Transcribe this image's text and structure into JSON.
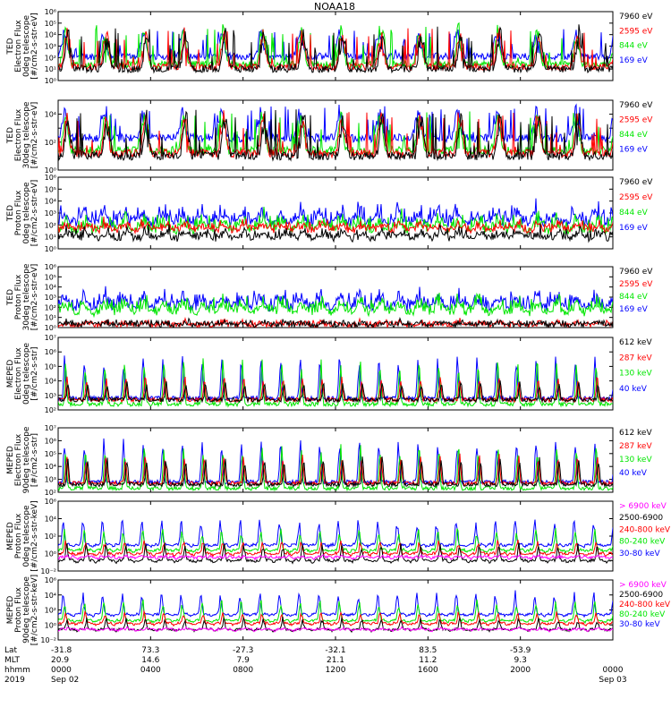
{
  "title": "NOAA18",
  "x_axis": {
    "row_labels": [
      "Lat",
      "MLT",
      "hhmm",
      "2019"
    ],
    "ticks": [
      {
        "t": 0,
        "lat": "-31.8",
        "mlt": "20.9",
        "hhmm": "0000",
        "date": "Sep 02"
      },
      {
        "t": 240,
        "lat": "73.3",
        "mlt": "14.6",
        "hhmm": "0400",
        "date": ""
      },
      {
        "t": 480,
        "lat": "-27.3",
        "mlt": "7.9",
        "hhmm": "0800",
        "date": ""
      },
      {
        "t": 720,
        "lat": "-32.1",
        "mlt": "21.1",
        "hhmm": "1200",
        "date": ""
      },
      {
        "t": 960,
        "lat": "83.5",
        "mlt": "11.2",
        "hhmm": "1600",
        "date": ""
      },
      {
        "t": 1200,
        "lat": "-53.9",
        "mlt": "9.3",
        "hhmm": "2000",
        "date": ""
      },
      {
        "t": 1440,
        "lat": "",
        "mlt": "",
        "hhmm": "0000",
        "date": "Sep 03"
      }
    ],
    "range_minutes": [
      0,
      1440
    ]
  },
  "colors": {
    "black": "#000000",
    "red": "#ff0000",
    "green": "#00e600",
    "blue": "#0000ff",
    "magenta": "#ff00ff"
  },
  "chart_data": [
    {
      "type": "line",
      "ylabel_lines": [
        "TED",
        "Electron Flux",
        "0deg telescope",
        "[#/cm2-s-str-eV]"
      ],
      "yscale": "log",
      "ylim_exp": [
        0,
        6
      ],
      "ytick_labels": [
        "10⁰",
        "10¹",
        "10²",
        "10³",
        "10⁴",
        "10⁵",
        "10⁶"
      ],
      "series": [
        {
          "name": "7960 eV",
          "color": "#000000",
          "base": 1.0,
          "peak": 4.8
        },
        {
          "name": "2595 eV",
          "color": "#ff0000",
          "base": 1.2,
          "peak": 4.6
        },
        {
          "name": "844 eV",
          "color": "#00e600",
          "base": 1.4,
          "peak": 4.9
        },
        {
          "name": "169 eV",
          "color": "#0000ff",
          "base": 2.1,
          "peak": 4.5
        }
      ],
      "pattern": "burst"
    },
    {
      "type": "line",
      "ylabel_lines": [
        "TED",
        "Electron Flux",
        "30deg telescope",
        "[#/cm2-s-str-eV]"
      ],
      "yscale": "log",
      "ylim_exp": [
        0,
        5
      ],
      "ytick_labels": [
        "10⁰",
        "",
        "10²",
        "",
        "10⁴",
        ""
      ],
      "series": [
        {
          "name": "7960 eV",
          "color": "#000000",
          "base": 1.0,
          "peak": 4.4
        },
        {
          "name": "2595 eV",
          "color": "#ff0000",
          "base": 1.2,
          "peak": 4.2
        },
        {
          "name": "844 eV",
          "color": "#00e600",
          "base": 1.4,
          "peak": 4.3
        },
        {
          "name": "169 eV",
          "color": "#0000ff",
          "base": 2.3,
          "peak": 4.6
        }
      ],
      "pattern": "burst"
    },
    {
      "type": "line",
      "ylabel_lines": [
        "TED",
        "Proton Flux",
        "0deg telescope",
        "[#/cm2-s-str-eV]"
      ],
      "yscale": "log",
      "ylim_exp": [
        0,
        6
      ],
      "ytick_labels": [
        "10⁰",
        "10¹",
        "10²",
        "10³",
        "10⁴",
        "10⁵",
        "10⁶"
      ],
      "series": [
        {
          "name": "7960 eV",
          "color": "#000000",
          "base": 0.8,
          "peak": 2.0
        },
        {
          "name": "2595 eV",
          "color": "#ff0000",
          "base": 1.5,
          "peak": 2.6
        },
        {
          "name": "844 eV",
          "color": "#00e600",
          "base": 1.4,
          "peak": 3.4
        },
        {
          "name": "169 eV",
          "color": "#0000ff",
          "base": 2.0,
          "peak": 4.2
        }
      ],
      "pattern": "noisy"
    },
    {
      "type": "line",
      "ylabel_lines": [
        "TED",
        "Proton Flux",
        "30deg telescope",
        "[#/cm2-s-str-eV]"
      ],
      "yscale": "log",
      "ylim_exp": [
        0,
        6
      ],
      "ytick_labels": [
        "10⁰",
        "10¹",
        "10²",
        "10³",
        "10⁴",
        "10⁵",
        "10⁶"
      ],
      "series": [
        {
          "name": "7960 eV",
          "color": "#000000",
          "base": 0.2,
          "peak": 0.8
        },
        {
          "name": "2595 eV",
          "color": "#ff0000",
          "base": 0.2,
          "peak": 0.8
        },
        {
          "name": "844 eV",
          "color": "#00e600",
          "base": 1.3,
          "peak": 3.6
        },
        {
          "name": "169 eV",
          "color": "#0000ff",
          "base": 1.8,
          "peak": 4.2
        }
      ],
      "pattern": "noisy"
    },
    {
      "type": "line",
      "ylabel_lines": [
        "MEPED",
        "Electron Flux",
        "0deg telescope",
        "[#/cm2-s-str]"
      ],
      "yscale": "log",
      "ylim_exp": [
        2,
        7
      ],
      "ytick_labels": [
        "10²",
        "10³",
        "10⁴",
        "10⁵",
        "10⁶",
        "10⁷"
      ],
      "series": [
        {
          "name": "612 keV",
          "color": "#000000",
          "base": 2.7,
          "peak": 4.0
        },
        {
          "name": "287 keV",
          "color": "#ff0000",
          "base": 2.7,
          "peak": 4.4
        },
        {
          "name": "130 keV",
          "color": "#00e600",
          "base": 2.4,
          "peak": 5.6
        },
        {
          "name": "40 keV",
          "color": "#0000ff",
          "base": 2.8,
          "peak": 5.8
        }
      ],
      "pattern": "spike"
    },
    {
      "type": "line",
      "ylabel_lines": [
        "MEPED",
        "Electron Flux",
        "90deg telescope",
        "[#/cm2-s-str]"
      ],
      "yscale": "log",
      "ylim_exp": [
        2,
        7
      ],
      "ytick_labels": [
        "10²",
        "10³",
        "10⁴",
        "10⁵",
        "10⁶",
        "10⁷"
      ],
      "series": [
        {
          "name": "612 keV",
          "color": "#000000",
          "base": 2.6,
          "peak": 4.8
        },
        {
          "name": "287 keV",
          "color": "#ff0000",
          "base": 2.7,
          "peak": 5.0
        },
        {
          "name": "130 keV",
          "color": "#00e600",
          "base": 2.3,
          "peak": 5.8
        },
        {
          "name": "40 keV",
          "color": "#0000ff",
          "base": 2.8,
          "peak": 6.3
        }
      ],
      "pattern": "spike"
    },
    {
      "type": "line",
      "ylabel_lines": [
        "MEPED",
        "Proton Flux",
        "0deg telescope",
        "[#/cm2-s-str-keV]"
      ],
      "yscale": "log",
      "ylim_exp": [
        -2,
        6
      ],
      "ytick_labels": [
        "10⁻²",
        "10⁰",
        "10²",
        "10⁴",
        "10⁶"
      ],
      "series": [
        {
          "name": "> 6900 keV",
          "color": "#ff00ff",
          "base": -0.6,
          "peak": -0.2
        },
        {
          "name": "2500-6900",
          "color": "#000000",
          "base": -1.0,
          "peak": 1.2
        },
        {
          "name": "240-800 keV",
          "color": "#ff0000",
          "base": -0.2,
          "peak": 1.6
        },
        {
          "name": "80-240 keV",
          "color": "#00e600",
          "base": 0.2,
          "peak": 3.0
        },
        {
          "name": "30-80 keV",
          "color": "#0000ff",
          "base": 0.8,
          "peak": 4.2
        }
      ],
      "pattern": "proton"
    },
    {
      "type": "line",
      "ylabel_lines": [
        "MEPED",
        "Proton Flux",
        "90deg telescope",
        "[#/cm2-s-str-keV]"
      ],
      "yscale": "log",
      "ylim_exp": [
        -2,
        6
      ],
      "ytick_labels": [
        "10⁻²",
        "10⁰",
        "10²",
        "10⁴",
        "10⁶"
      ],
      "series": [
        {
          "name": "> 6900 keV",
          "color": "#ff00ff",
          "base": -0.8,
          "peak": -0.3
        },
        {
          "name": "2500-6900",
          "color": "#000000",
          "base": -0.8,
          "peak": 1.0
        },
        {
          "name": "240-800 keV",
          "color": "#ff0000",
          "base": 0.0,
          "peak": 1.8
        },
        {
          "name": "80-240 keV",
          "color": "#00e600",
          "base": 0.4,
          "peak": 3.4
        },
        {
          "name": "30-80 keV",
          "color": "#0000ff",
          "base": 1.2,
          "peak": 4.6
        }
      ],
      "pattern": "proton"
    }
  ]
}
